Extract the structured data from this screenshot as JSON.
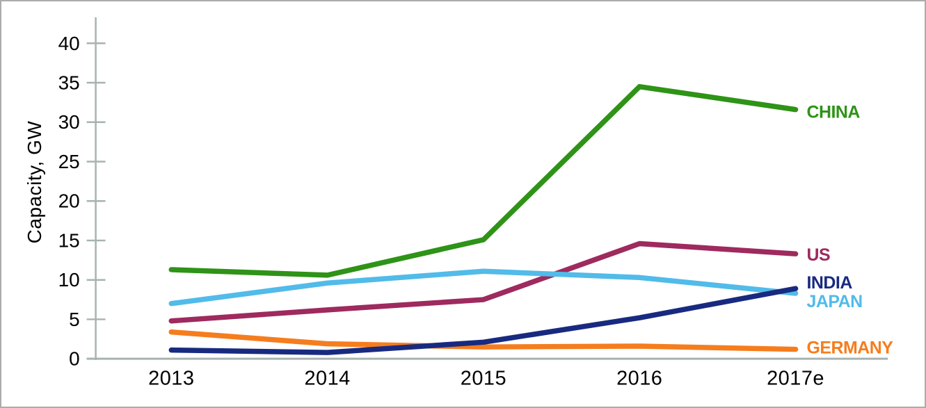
{
  "frame": {
    "background": "#ffffff",
    "border_color": "#ababab"
  },
  "chart_data": {
    "type": "line",
    "title": "",
    "ylabel": "Capacity, GW",
    "xlabel": "",
    "categories": [
      "2013",
      "2014",
      "2015",
      "2016",
      "2017e"
    ],
    "ylim": [
      0,
      40
    ],
    "ytick_interval": 5,
    "yticks": [
      0,
      5,
      10,
      15,
      20,
      25,
      30,
      35,
      40
    ],
    "grid": false,
    "legend_position": "line-end-labels-right",
    "axis_color": "#a7b3b1",
    "text_color": "#000000",
    "series": [
      {
        "name": "CHINA",
        "color": "#2e9317",
        "values": [
          11.3,
          10.6,
          15.1,
          34.5,
          31.6
        ],
        "label_dy": 4
      },
      {
        "name": "US",
        "color": "#9e2a5e",
        "values": [
          4.8,
          6.2,
          7.5,
          14.6,
          13.3
        ],
        "label_dy": 2
      },
      {
        "name": "INDIA",
        "color": "#182a80",
        "values": [
          1.1,
          0.8,
          2.1,
          5.2,
          8.9
        ],
        "label_dy": -8
      },
      {
        "name": "JAPAN",
        "color": "#51bbe9",
        "values": [
          7.0,
          9.6,
          11.1,
          10.3,
          8.3
        ],
        "label_dy": 12
      },
      {
        "name": "GERMANY",
        "color": "#f57d1e",
        "values": [
          3.4,
          1.9,
          1.5,
          1.6,
          1.2
        ],
        "label_dy": -2
      }
    ],
    "draw_order": [
      "US",
      "GERMANY",
      "JAPAN",
      "CHINA",
      "INDIA"
    ]
  }
}
